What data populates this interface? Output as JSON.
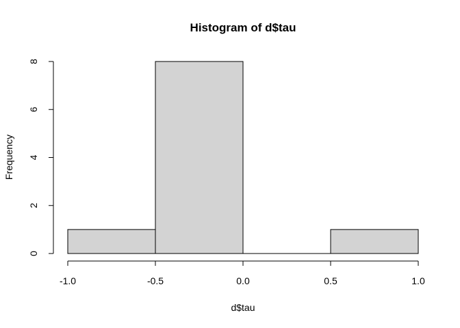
{
  "chart_data": {
    "type": "bar",
    "title": "Histogram of d$tau",
    "xlabel": "d$tau",
    "ylabel": "Frequency",
    "bins": [
      {
        "start": -1.0,
        "end": -0.5,
        "count": 1
      },
      {
        "start": -0.5,
        "end": 0.0,
        "count": 8
      },
      {
        "start": 0.0,
        "end": 0.5,
        "count": 0
      },
      {
        "start": 0.5,
        "end": 1.0,
        "count": 1
      }
    ],
    "xlim": [
      -1.0,
      1.0
    ],
    "ylim": [
      0,
      8
    ],
    "x_ticks": [
      "-1.0",
      "-0.5",
      "0.0",
      "0.5",
      "1.0"
    ],
    "y_ticks": [
      "0",
      "2",
      "4",
      "6",
      "8"
    ],
    "bar_fill": "#d3d3d3",
    "bar_stroke": "#000000",
    "grid": false
  }
}
